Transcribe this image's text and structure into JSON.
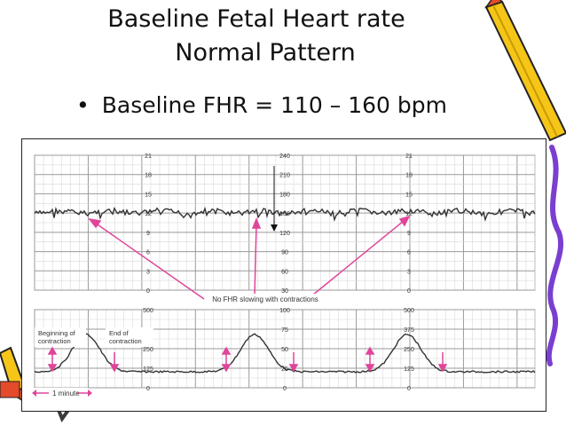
{
  "slide": {
    "title_line1": "Baseline Fetal Heart rate",
    "title_line2": "Normal Pattern",
    "bullet_text": "Baseline FHR = 110 – 160 bpm"
  },
  "strip": {
    "fhr_scale_side": [
      "21",
      "18",
      "15",
      "12",
      "9",
      "6",
      "3",
      "0"
    ],
    "fhr_scale_center": [
      "240",
      "210",
      "180",
      "150",
      "120",
      "90",
      "60",
      "30"
    ],
    "uc_scale_side": [
      "500",
      "375",
      "250",
      "125",
      "0"
    ],
    "uc_scale_center": [
      "100",
      "75",
      "50",
      "25",
      "0"
    ],
    "annotation_fhr": "No FHR slowing with contractions",
    "label_begin_1": "Beginning of",
    "label_begin_2": "contraction",
    "label_end_1": "End of",
    "label_end_2": "contraction",
    "label_minute": "1 minute"
  },
  "colors": {
    "grid_minor": "#d8d8d8",
    "grid_major": "#9a9a9a",
    "trace": "#333333",
    "arrow": "#e0459a",
    "pencil_body": "#f5c518",
    "pencil_tip": "#e34b2a",
    "decor_purple": "#7a3fd0"
  }
}
